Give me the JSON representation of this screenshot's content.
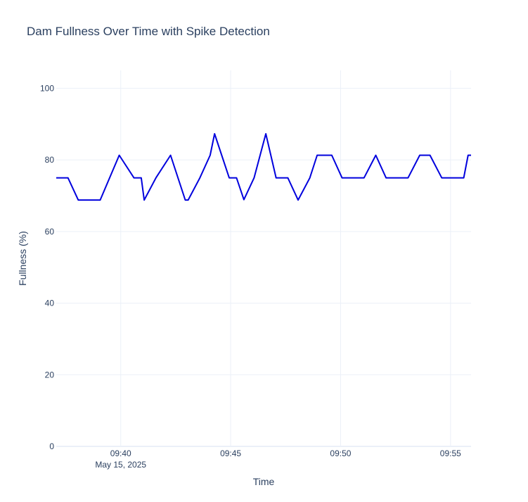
{
  "chart_data": {
    "type": "line",
    "title": "Dam Fullness Over Time with Spike Detection",
    "xlabel": "Time",
    "ylabel": "Fullness (%)",
    "ylim": [
      0,
      105
    ],
    "xlim": [
      "09:37:04",
      "09:55:56"
    ],
    "y_ticks": [
      0,
      20,
      40,
      60,
      80,
      100
    ],
    "x_ticks": [
      {
        "time": "09:40:00",
        "label": "09:40",
        "sublabel": "May 15, 2025"
      },
      {
        "time": "09:45:00",
        "label": "09:45",
        "sublabel": ""
      },
      {
        "time": "09:50:00",
        "label": "09:50",
        "sublabel": ""
      },
      {
        "time": "09:55:00",
        "label": "09:55",
        "sublabel": ""
      }
    ],
    "grid": true,
    "series": [
      {
        "color": "#0000dd",
        "x": [
          "09:37:04",
          "09:37:36",
          "09:38:04",
          "09:39:04",
          "09:39:56",
          "09:40:36",
          "09:40:56",
          "09:41:04",
          "09:41:36",
          "09:42:16",
          "09:42:56",
          "09:43:04",
          "09:43:36",
          "09:44:04",
          "09:44:16",
          "09:44:56",
          "09:45:16",
          "09:45:36",
          "09:46:04",
          "09:46:36",
          "09:47:04",
          "09:47:36",
          "09:48:04",
          "09:48:36",
          "09:48:56",
          "09:49:36",
          "09:50:04",
          "09:50:36",
          "09:51:04",
          "09:51:36",
          "09:52:04",
          "09:52:36",
          "09:53:04",
          "09:53:36",
          "09:54:04",
          "09:54:36",
          "09:55:04",
          "09:55:36",
          "09:55:48",
          "09:55:56"
        ],
        "y": [
          75,
          75,
          68.8,
          68.8,
          81.3,
          75,
          75,
          68.8,
          75,
          81.3,
          68.8,
          68.8,
          75,
          81.3,
          87.3,
          75,
          75,
          68.9,
          75,
          87.3,
          75,
          75,
          68.8,
          75,
          81.3,
          81.3,
          75,
          75,
          75,
          81.3,
          75,
          75,
          75,
          81.3,
          81.3,
          75,
          75,
          75,
          81.3,
          81.3
        ]
      }
    ]
  }
}
